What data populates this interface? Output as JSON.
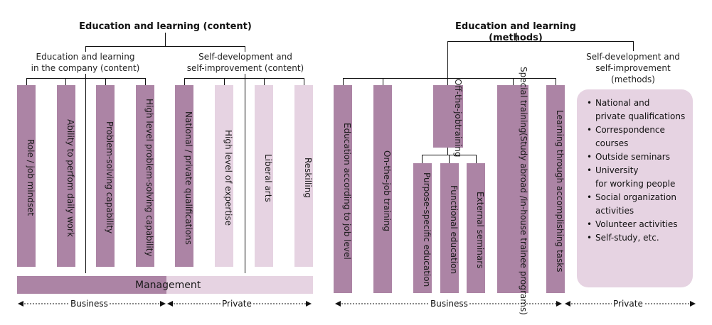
{
  "content": {
    "title": "Education and learning (content)",
    "group_company": [
      "Education and learning",
      "in the company (content)"
    ],
    "group_self": [
      "Self-development and",
      "self-improvement (content)"
    ],
    "bars": [
      [
        "Role / job mindset"
      ],
      [
        "Ability to perfom daily work"
      ],
      [
        "Problem-solving capability"
      ],
      [
        "High level problem-solving capability"
      ],
      [
        "National / private qualifications"
      ],
      [
        "High level of expertise"
      ],
      [
        "Liberal arts"
      ],
      [
        "Reskilling"
      ]
    ],
    "management": "Management",
    "axis_business": "Business",
    "axis_private": "Private"
  },
  "methods": {
    "title": "Education and learning (methods)",
    "group_self": [
      "Self-development and",
      "self-improvement",
      "(methods)"
    ],
    "bars": [
      [
        "Education according to job level"
      ],
      [
        "On-the-job training"
      ],
      [
        "Off-the-job",
        "training"
      ],
      [
        "Special training",
        "(Study abroad /in-house trainee programs)"
      ],
      [
        "Learning through accomplishing tasks"
      ]
    ],
    "sub_bars": [
      [
        "Purpose-specific education"
      ],
      [
        "Functional education"
      ],
      [
        "External seminars"
      ]
    ],
    "self_items": [
      [
        "National and",
        "private qualifications"
      ],
      [
        "Correspondence",
        "courses"
      ],
      [
        "Outside seminars"
      ],
      [
        "University",
        "for working people"
      ],
      [
        "Social organization",
        "activities"
      ],
      [
        "Volunteer activities"
      ],
      [
        "Self-study, etc."
      ]
    ],
    "axis_business": "Business",
    "axis_private": "Private"
  },
  "colors": {
    "dark": "#ac84a5",
    "light": "#e6d3e2",
    "line": "#111111"
  }
}
